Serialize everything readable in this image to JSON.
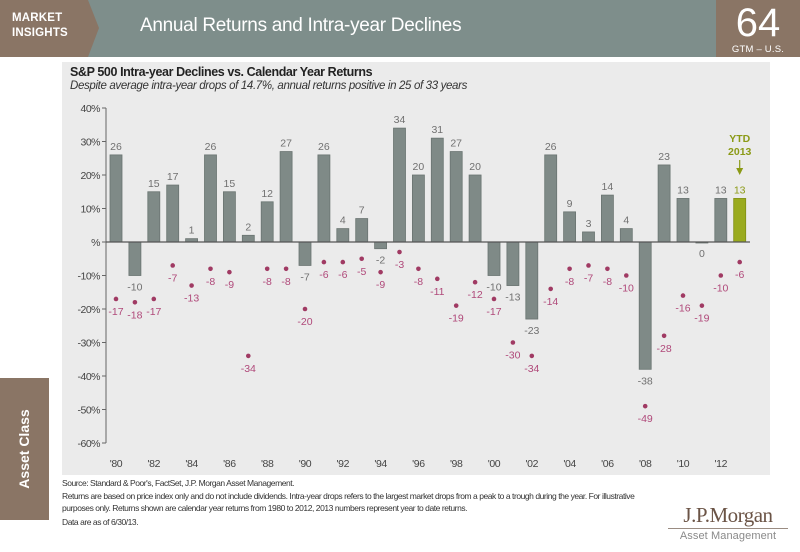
{
  "header": {
    "brand_line1": "MARKET",
    "brand_line2": "INSIGHTS",
    "title": "Annual Returns and Intra-year Declines",
    "page_number": "64",
    "page_section": "GTM – U.S."
  },
  "side_tab": {
    "label": "Asset Class"
  },
  "chart_data": {
    "type": "bar",
    "title": "S&P 500 Intra-year Declines vs. Calendar Year Returns",
    "subtitle": "Despite average intra-year drops of 14.7%, annual returns positive in 25 of 33 years",
    "xlabel": "",
    "ylabel": "",
    "ylim": [
      -60,
      40
    ],
    "grid": false,
    "categories": [
      1980,
      1981,
      1982,
      1983,
      1984,
      1985,
      1986,
      1987,
      1988,
      1989,
      1990,
      1991,
      1992,
      1993,
      1994,
      1995,
      1996,
      1997,
      1998,
      1999,
      2000,
      2001,
      2002,
      2003,
      2004,
      2005,
      2006,
      2007,
      2008,
      2009,
      2010,
      2011,
      2012,
      2013
    ],
    "series": [
      {
        "name": "Calendar year return (%)",
        "type": "bar",
        "values": [
          26,
          -10,
          15,
          17,
          1,
          26,
          15,
          2,
          12,
          27,
          -7,
          26,
          4,
          7,
          -2,
          34,
          20,
          31,
          27,
          20,
          -10,
          -13,
          -23,
          26,
          9,
          3,
          14,
          4,
          -38,
          23,
          13,
          0,
          13,
          13
        ]
      },
      {
        "name": "Intra-year decline (%)",
        "type": "scatter",
        "values": [
          -17,
          -18,
          -17,
          -7,
          -13,
          -8,
          -9,
          -34,
          -8,
          -8,
          -20,
          -6,
          -6,
          -5,
          -9,
          -3,
          -8,
          -11,
          -19,
          -12,
          -17,
          -30,
          -34,
          -14,
          -8,
          -7,
          -8,
          -10,
          -49,
          -28,
          -16,
          -19,
          -10,
          -6
        ]
      }
    ],
    "yticks": [
      40,
      30,
      20,
      10,
      0,
      -10,
      -20,
      -30,
      -40,
      -50,
      -60
    ],
    "ytick_labels": [
      "40%",
      "30%",
      "20%",
      "10%",
      "%",
      "-10%",
      "-20%",
      "-30%",
      "-40%",
      "-50%",
      "-60%"
    ],
    "xtick_labels": [
      "'80",
      "'82",
      "'84",
      "'86",
      "'88",
      "'90",
      "'92",
      "'94",
      "'96",
      "'98",
      "'00",
      "'02",
      "'04",
      "'06",
      "'08",
      "'10",
      "'12"
    ],
    "highlight": {
      "category": 2013,
      "label_line1": "YTD",
      "label_line2": "2013"
    },
    "colors": {
      "bar": "#7f8a87",
      "highlight_bar": "#9aab1e",
      "dot": "#a03a63",
      "dot_label": "#b0497a",
      "bar_label": "#707070"
    }
  },
  "footnotes": {
    "source": "Source: Standard & Poor's, FactSet, J.P. Morgan Asset Management.",
    "note": "Returns are based on price index only and do not include dividends. Intra-year drops refers to the largest market drops from a peak to a trough during the year. For illustrative purposes only. Returns shown are calendar year returns from 1980 to 2012, 2013 numbers represent year to date returns.",
    "as_of": "Data are as of 6/30/13."
  },
  "logo": {
    "name": "J.P.Morgan",
    "sub": "Asset Management"
  }
}
